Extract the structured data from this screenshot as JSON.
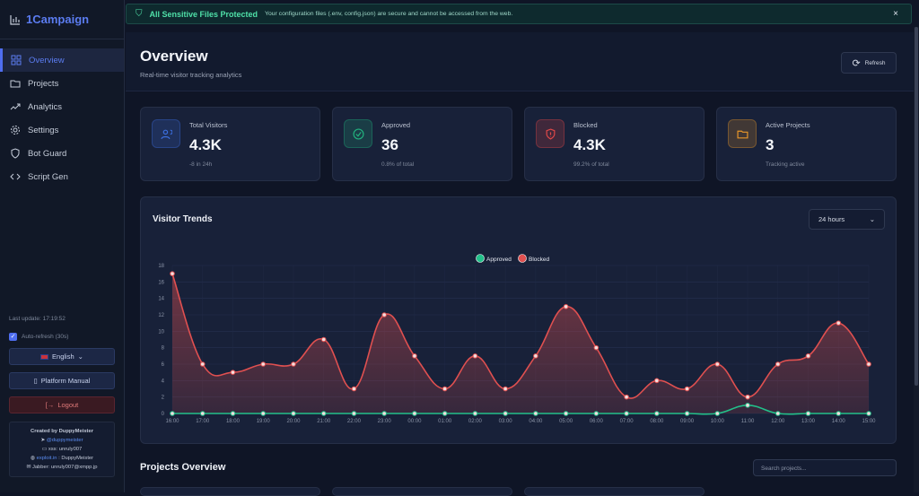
{
  "app": {
    "name": "1Campaign"
  },
  "sidebar": {
    "items": [
      {
        "label": "Overview",
        "icon": "grid-icon",
        "active": true
      },
      {
        "label": "Projects",
        "icon": "folder-icon"
      },
      {
        "label": "Analytics",
        "icon": "trending-up-icon"
      },
      {
        "label": "Settings",
        "icon": "gear-icon"
      },
      {
        "label": "Bot Guard",
        "icon": "shield-icon"
      },
      {
        "label": "Script Gen",
        "icon": "code-icon"
      }
    ],
    "last_update": "Last update: 17:19:52",
    "auto_refresh": "Auto-refresh (30s)",
    "auto_refresh_checked": true,
    "language": "English",
    "manual": "Platform Manual",
    "logout": "Logout",
    "credit": {
      "title": "Created by DuppyMeister",
      "telegram": "@duppymeister",
      "xss_label": "xss:",
      "xss": "unruly007",
      "exploit_link": "exploit.in",
      "exploit_sep": ": DuppyMeister",
      "jabber": "Jabber: unruly007@xmpp.jp"
    }
  },
  "banner": {
    "title": "All Sensitive Files Protected",
    "text": "Your configuration files (.env, config.json) are secure and cannot be accessed from the web.",
    "close": "×"
  },
  "header": {
    "title": "Overview",
    "subtitle": "Real-time visitor tracking analytics",
    "refresh": "Refresh"
  },
  "stats": [
    {
      "label": "Total Visitors",
      "value": "4.3K",
      "sub": "-8 in 24h",
      "color": "#3b6fe0"
    },
    {
      "label": "Approved",
      "value": "36",
      "sub": "0.8% of total",
      "color": "#22b07d"
    },
    {
      "label": "Blocked",
      "value": "4.3K",
      "sub": "99.2% of total",
      "color": "#e04848"
    },
    {
      "label": "Active Projects",
      "value": "3",
      "sub": "Tracking active",
      "color": "#e8962a"
    }
  ],
  "chart": {
    "title": "Visitor Trends",
    "range": "24 hours"
  },
  "chart_data": {
    "type": "line",
    "categories": [
      "16:00",
      "17:00",
      "18:00",
      "19:00",
      "20:00",
      "21:00",
      "22:00",
      "23:00",
      "00:00",
      "01:00",
      "02:00",
      "03:00",
      "04:00",
      "05:00",
      "06:00",
      "07:00",
      "08:00",
      "09:00",
      "10:00",
      "11:00",
      "12:00",
      "13:00",
      "14:00",
      "15:00"
    ],
    "series": [
      {
        "name": "Approved",
        "color": "#22c08a",
        "values": [
          0,
          0,
          0,
          0,
          0,
          0,
          0,
          0,
          0,
          0,
          0,
          0,
          0,
          0,
          0,
          0,
          0,
          0,
          0,
          1,
          0,
          0,
          0,
          0
        ]
      },
      {
        "name": "Blocked",
        "color": "#e05050",
        "values": [
          17,
          6,
          5,
          6,
          6,
          9,
          3,
          12,
          7,
          3,
          7,
          3,
          7,
          13,
          8,
          2,
          4,
          3,
          6,
          2,
          6,
          7,
          11,
          6
        ]
      }
    ],
    "ylim": [
      0,
      18
    ],
    "yticks": [
      "0",
      "2",
      "4",
      "6",
      "8",
      "10",
      "12",
      "14",
      "16",
      "18"
    ],
    "legend": "top",
    "grid": true
  },
  "projects": {
    "title": "Projects Overview",
    "search_placeholder": "Search projects..."
  }
}
